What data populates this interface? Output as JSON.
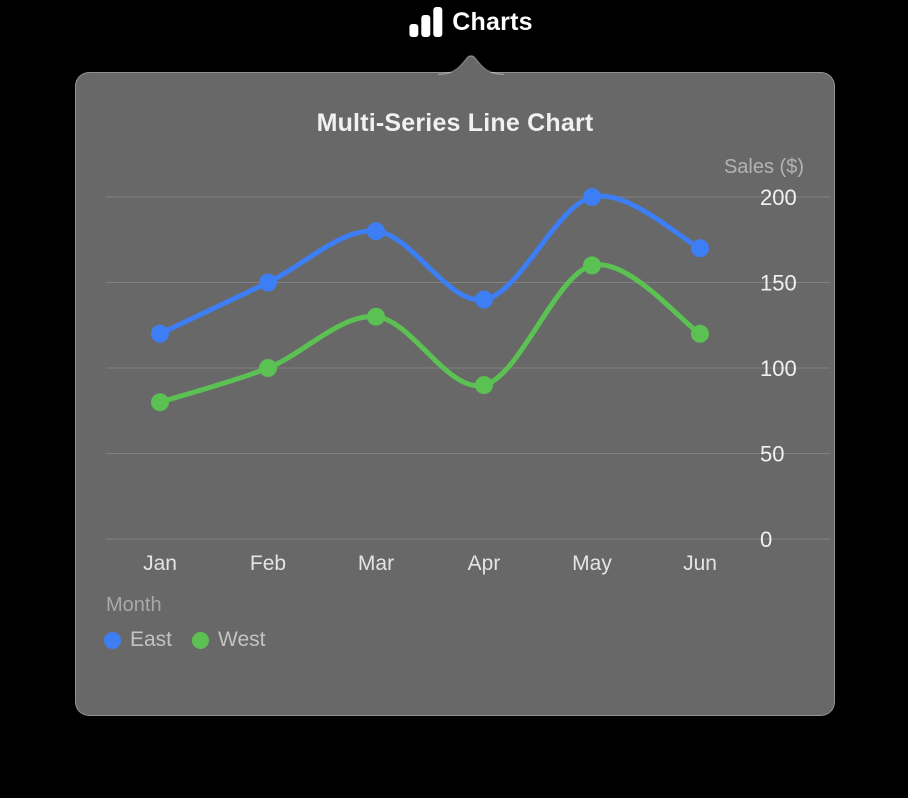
{
  "window": {
    "title": "Charts",
    "icon": "bar-chart-icon"
  },
  "panel": {
    "kind": "popover"
  },
  "colors": {
    "page_bg": "#000000",
    "panel_bg": "#686868",
    "grid_line": "rgba(255,255,255,0.17)",
    "tick_label": "#f1f1f1",
    "month_label": "#e4e4e4",
    "axis_title": "#b3b3b3",
    "east_blue": "#3d7ef5",
    "west_green": "#5cc153"
  },
  "chart_data": {
    "type": "line",
    "title": "Multi-Series Line Chart",
    "categories": [
      "Jan",
      "Feb",
      "Mar",
      "Apr",
      "May",
      "Jun"
    ],
    "series": [
      {
        "name": "East",
        "color": "#3d7ef5",
        "values": [
          120,
          150,
          180,
          140,
          200,
          170
        ]
      },
      {
        "name": "West",
        "color": "#5cc153",
        "values": [
          80,
          100,
          130,
          90,
          160,
          120
        ]
      }
    ],
    "xlabel": "Month",
    "ylabel": "Sales ($)",
    "ylim": [
      0,
      200
    ],
    "yticks": [
      0,
      50,
      100,
      150,
      200
    ],
    "y_axis_side": "right",
    "grid": "horizontal",
    "curve": "smooth",
    "markers": "circle",
    "legend_position": "bottom-left"
  }
}
